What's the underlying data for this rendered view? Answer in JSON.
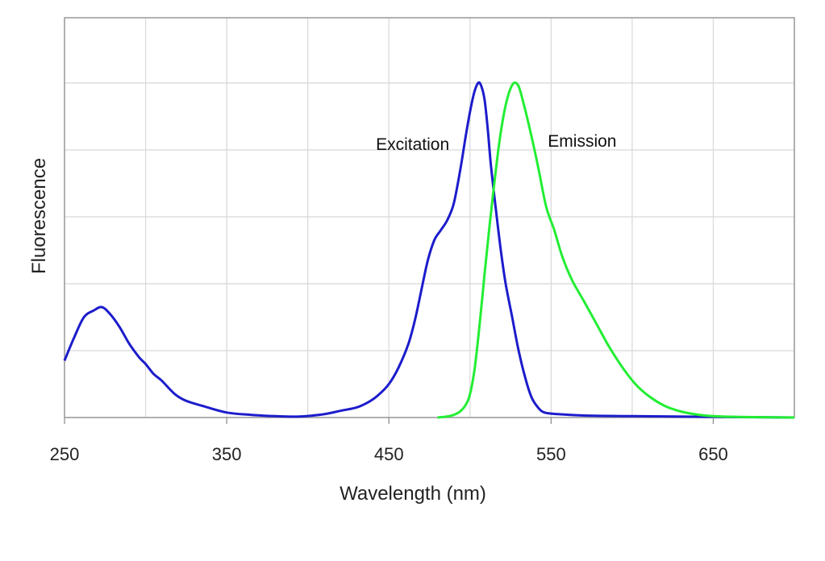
{
  "chart_data": {
    "type": "line",
    "title": "",
    "xlabel": "Wavelength (nm)",
    "ylabel": "Fluorescence",
    "xlim": [
      250,
      700
    ],
    "ylim": [
      0,
      1.0
    ],
    "x_ticks": [
      250,
      350,
      450,
      550,
      650
    ],
    "x_tick_labels": [
      "250",
      "350",
      "450",
      "550",
      "650"
    ],
    "x_grid": [
      250,
      300,
      350,
      400,
      450,
      500,
      550,
      600,
      650,
      700
    ],
    "y_grid": [
      0,
      0.2,
      0.4,
      0.6,
      0.8,
      1.0
    ],
    "grid": true,
    "series": [
      {
        "name": "Excitation",
        "color": "#1c1ccc",
        "x": [
          250,
          256,
          262,
          268,
          273,
          278,
          284,
          290,
          296,
          300,
          305,
          310,
          318,
          325,
          335,
          350,
          365,
          380,
          395,
          410,
          420,
          430,
          437,
          443,
          450,
          456,
          462,
          466,
          470,
          474,
          478,
          482,
          486,
          490,
          494,
          498,
          502,
          505,
          507,
          509,
          511,
          513,
          516,
          519,
          522,
          526,
          530,
          534,
          538,
          542,
          546,
          555,
          570,
          600,
          650,
          700
        ],
        "y": [
          0.17,
          0.24,
          0.3,
          0.32,
          0.33,
          0.31,
          0.27,
          0.22,
          0.18,
          0.16,
          0.13,
          0.11,
          0.07,
          0.05,
          0.035,
          0.015,
          0.008,
          0.004,
          0.003,
          0.01,
          0.02,
          0.03,
          0.045,
          0.065,
          0.1,
          0.15,
          0.22,
          0.29,
          0.38,
          0.47,
          0.53,
          0.56,
          0.59,
          0.64,
          0.74,
          0.86,
          0.96,
          1.0,
          0.99,
          0.95,
          0.86,
          0.75,
          0.62,
          0.5,
          0.4,
          0.3,
          0.2,
          0.12,
          0.06,
          0.03,
          0.015,
          0.01,
          0.006,
          0.004,
          0.002,
          0.0
        ]
      },
      {
        "name": "Emission",
        "color": "#22ee33",
        "x": [
          480,
          488,
          493,
          497,
          500,
          503,
          506,
          509,
          512,
          515,
          518,
          521,
          524,
          527,
          530,
          533,
          537,
          542,
          547,
          552,
          557,
          563,
          570,
          578,
          586,
          594,
          602,
          610,
          620,
          630,
          640,
          650,
          665,
          680,
          700
        ],
        "y": [
          0.0,
          0.005,
          0.015,
          0.035,
          0.07,
          0.15,
          0.28,
          0.43,
          0.57,
          0.7,
          0.82,
          0.91,
          0.97,
          1.0,
          0.99,
          0.94,
          0.86,
          0.75,
          0.63,
          0.56,
          0.48,
          0.41,
          0.35,
          0.28,
          0.21,
          0.15,
          0.1,
          0.065,
          0.035,
          0.018,
          0.009,
          0.004,
          0.002,
          0.001,
          0.0
        ]
      }
    ],
    "annotations": [
      {
        "text": "Excitation",
        "x": 442,
        "y": 0.8
      },
      {
        "text": "Emission",
        "x": 548,
        "y": 0.81
      }
    ]
  }
}
